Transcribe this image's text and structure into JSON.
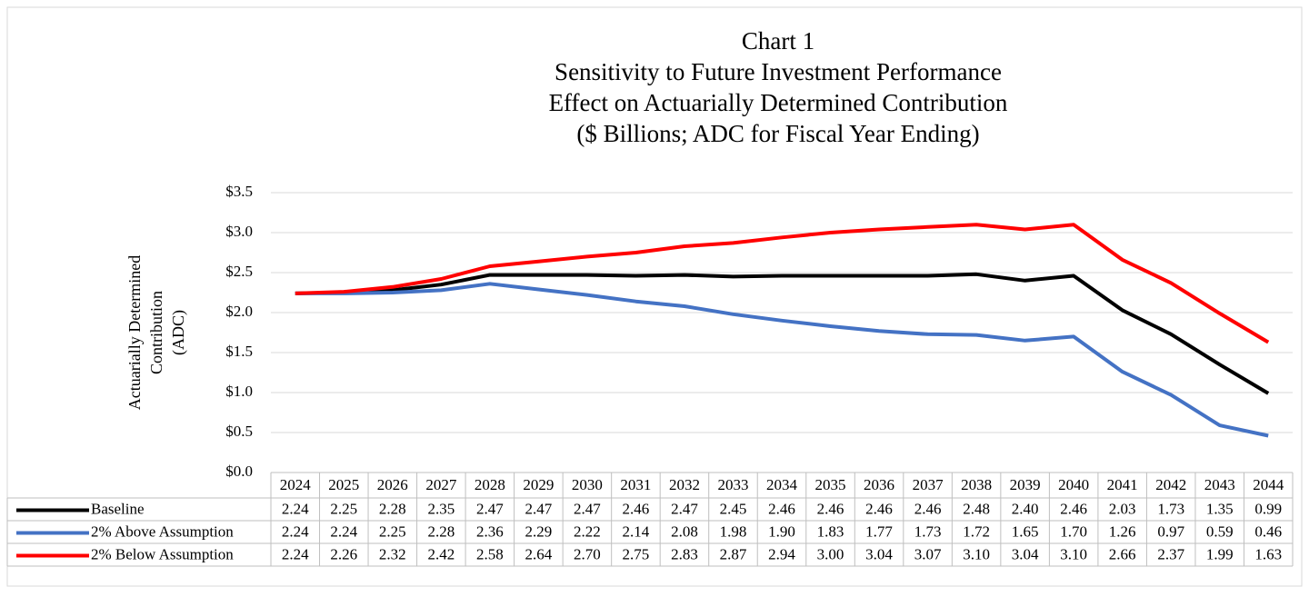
{
  "chart_data": {
    "type": "line",
    "title": [
      "Chart 1",
      "Sensitivity to Future Investment Performance",
      "Effect on Actuarially Determined Contribution",
      "($ Billions; ADC for Fiscal Year Ending)"
    ],
    "y_label": [
      "Actuarially Determined",
      "Contribution",
      "(ADC)"
    ],
    "categories": [
      "2024",
      "2025",
      "2026",
      "2027",
      "2028",
      "2029",
      "2030",
      "2031",
      "2032",
      "2033",
      "2034",
      "2035",
      "2036",
      "2037",
      "2038",
      "2039",
      "2040",
      "2041",
      "2042",
      "2043",
      "2044"
    ],
    "series": [
      {
        "name": "Baseline",
        "color": "#000000",
        "values": [
          2.24,
          2.25,
          2.28,
          2.35,
          2.47,
          2.47,
          2.47,
          2.46,
          2.47,
          2.45,
          2.46,
          2.46,
          2.46,
          2.46,
          2.48,
          2.4,
          2.46,
          2.03,
          1.73,
          1.35,
          0.99
        ],
        "value_labels": [
          "2.24",
          "2.25",
          "2.28",
          "2.35",
          "2.47",
          "2.47",
          "2.47",
          "2.46",
          "2.47",
          "2.45",
          "2.46",
          "2.46",
          "2.46",
          "2.46",
          "2.48",
          "2.40",
          "2.46",
          "2.03",
          "1.73",
          "1.35",
          "0.99"
        ]
      },
      {
        "name": "2% Above Assumption",
        "color": "#4472c4",
        "values": [
          2.24,
          2.24,
          2.25,
          2.28,
          2.36,
          2.29,
          2.22,
          2.14,
          2.08,
          1.98,
          1.9,
          1.83,
          1.77,
          1.73,
          1.72,
          1.65,
          1.7,
          1.26,
          0.97,
          0.59,
          0.46
        ],
        "value_labels": [
          "2.24",
          "2.24",
          "2.25",
          "2.28",
          "2.36",
          "2.29",
          "2.22",
          "2.14",
          "2.08",
          "1.98",
          "1.90",
          "1.83",
          "1.77",
          "1.73",
          "1.72",
          "1.65",
          "1.70",
          "1.26",
          "0.97",
          "0.59",
          "0.46"
        ]
      },
      {
        "name": "2% Below Assumption",
        "color": "#ff0000",
        "values": [
          2.24,
          2.26,
          2.32,
          2.42,
          2.58,
          2.64,
          2.7,
          2.75,
          2.83,
          2.87,
          2.94,
          3.0,
          3.04,
          3.07,
          3.1,
          3.04,
          3.1,
          2.66,
          2.37,
          1.99,
          1.63
        ],
        "value_labels": [
          "2.24",
          "2.26",
          "2.32",
          "2.42",
          "2.58",
          "2.64",
          "2.70",
          "2.75",
          "2.83",
          "2.87",
          "2.94",
          "3.00",
          "3.04",
          "3.07",
          "3.10",
          "3.04",
          "3.10",
          "2.66",
          "2.37",
          "1.99",
          "1.63"
        ]
      }
    ],
    "ylim": [
      0,
      3.5
    ],
    "yticks": [
      {
        "value": 0,
        "label": "$0.0"
      },
      {
        "value": 0.5,
        "label": "$0.5"
      },
      {
        "value": 1,
        "label": "$1.0"
      },
      {
        "value": 1.5,
        "label": "$1.5"
      },
      {
        "value": 2,
        "label": "$2.0"
      },
      {
        "value": 2.5,
        "label": "$2.5"
      },
      {
        "value": 3,
        "label": "$3.0"
      },
      {
        "value": 3.5,
        "label": "$3.5"
      }
    ],
    "grid": true
  }
}
